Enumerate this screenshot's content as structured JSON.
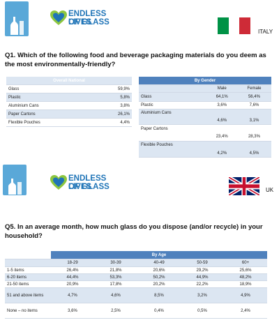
{
  "section1": {
    "logo_fog": "Friends of Glass",
    "logo_elg_line1": "ENDLESS LIVES",
    "logo_elg_line2": "OF GLASS",
    "country": "ITALY",
    "flag_colors": [
      "#009246",
      "#ffffff",
      "#ce2b37"
    ],
    "question": "Q1. Which of the following food and beverage packaging materials do you deem as the most environmentally-friendly?",
    "overall": {
      "header": "Overall National",
      "rows": [
        {
          "label": "Glass",
          "value": "59,9%"
        },
        {
          "label": "Plastic",
          "value": "5,8%"
        },
        {
          "label": "Aluminium Cans",
          "value": "3,8%"
        },
        {
          "label": "Paper Cartons",
          "value": "26,1%"
        },
        {
          "label": "Flexible Pouches",
          "value": "4,4%"
        }
      ]
    },
    "by_gender": {
      "header": "By Gender",
      "columns": [
        "Male",
        "Female"
      ],
      "rows": [
        {
          "label": "Glass",
          "values": [
            "64,1%",
            "56,4%"
          ]
        },
        {
          "label": "Plastic",
          "values": [
            "3,6%",
            "7,6%"
          ]
        },
        {
          "label": "Aluminium Cans",
          "values": [
            "4,6%",
            "3,1%"
          ]
        },
        {
          "label": "Paper Cartons",
          "values": [
            "23,4%",
            "28,3%"
          ]
        },
        {
          "label": "Flexible Pouches",
          "values": [
            "4,2%",
            "4,5%"
          ]
        }
      ]
    }
  },
  "section2": {
    "logo_fog": "Friends of Glass",
    "logo_elg_line1": "ENDLESS LIVES",
    "logo_elg_line2": "OF GLASS",
    "country": "UK",
    "question": "Q5. In an average month, how much glass do you dispose (and/or recycle) in your household?",
    "by_age": {
      "header": "By Age",
      "columns": [
        "18-29",
        "30-39",
        "40-49",
        "50-59",
        "60+"
      ],
      "rows": [
        {
          "label": "1-5 items",
          "values": [
            "26,4%",
            "21,8%",
            "20,6%",
            "29,2%",
            "25,6%"
          ]
        },
        {
          "label": "6-20 items",
          "values": [
            "44,4%",
            "53,3%",
            "50,2%",
            "44,9%",
            "48,2%"
          ]
        },
        {
          "label": "21-50 items",
          "values": [
            "20,9%",
            "17,8%",
            "20,2%",
            "22,2%",
            "18,9%"
          ]
        },
        {
          "label": "51 and above items",
          "values": [
            "4,7%",
            "4,6%",
            "8,5%",
            "3,2%",
            "4,9%"
          ]
        },
        {
          "label": "None – no items",
          "values": [
            "3,6%",
            "2,5%",
            "0,4%",
            "0,5%",
            "2,4%"
          ]
        }
      ]
    }
  }
}
